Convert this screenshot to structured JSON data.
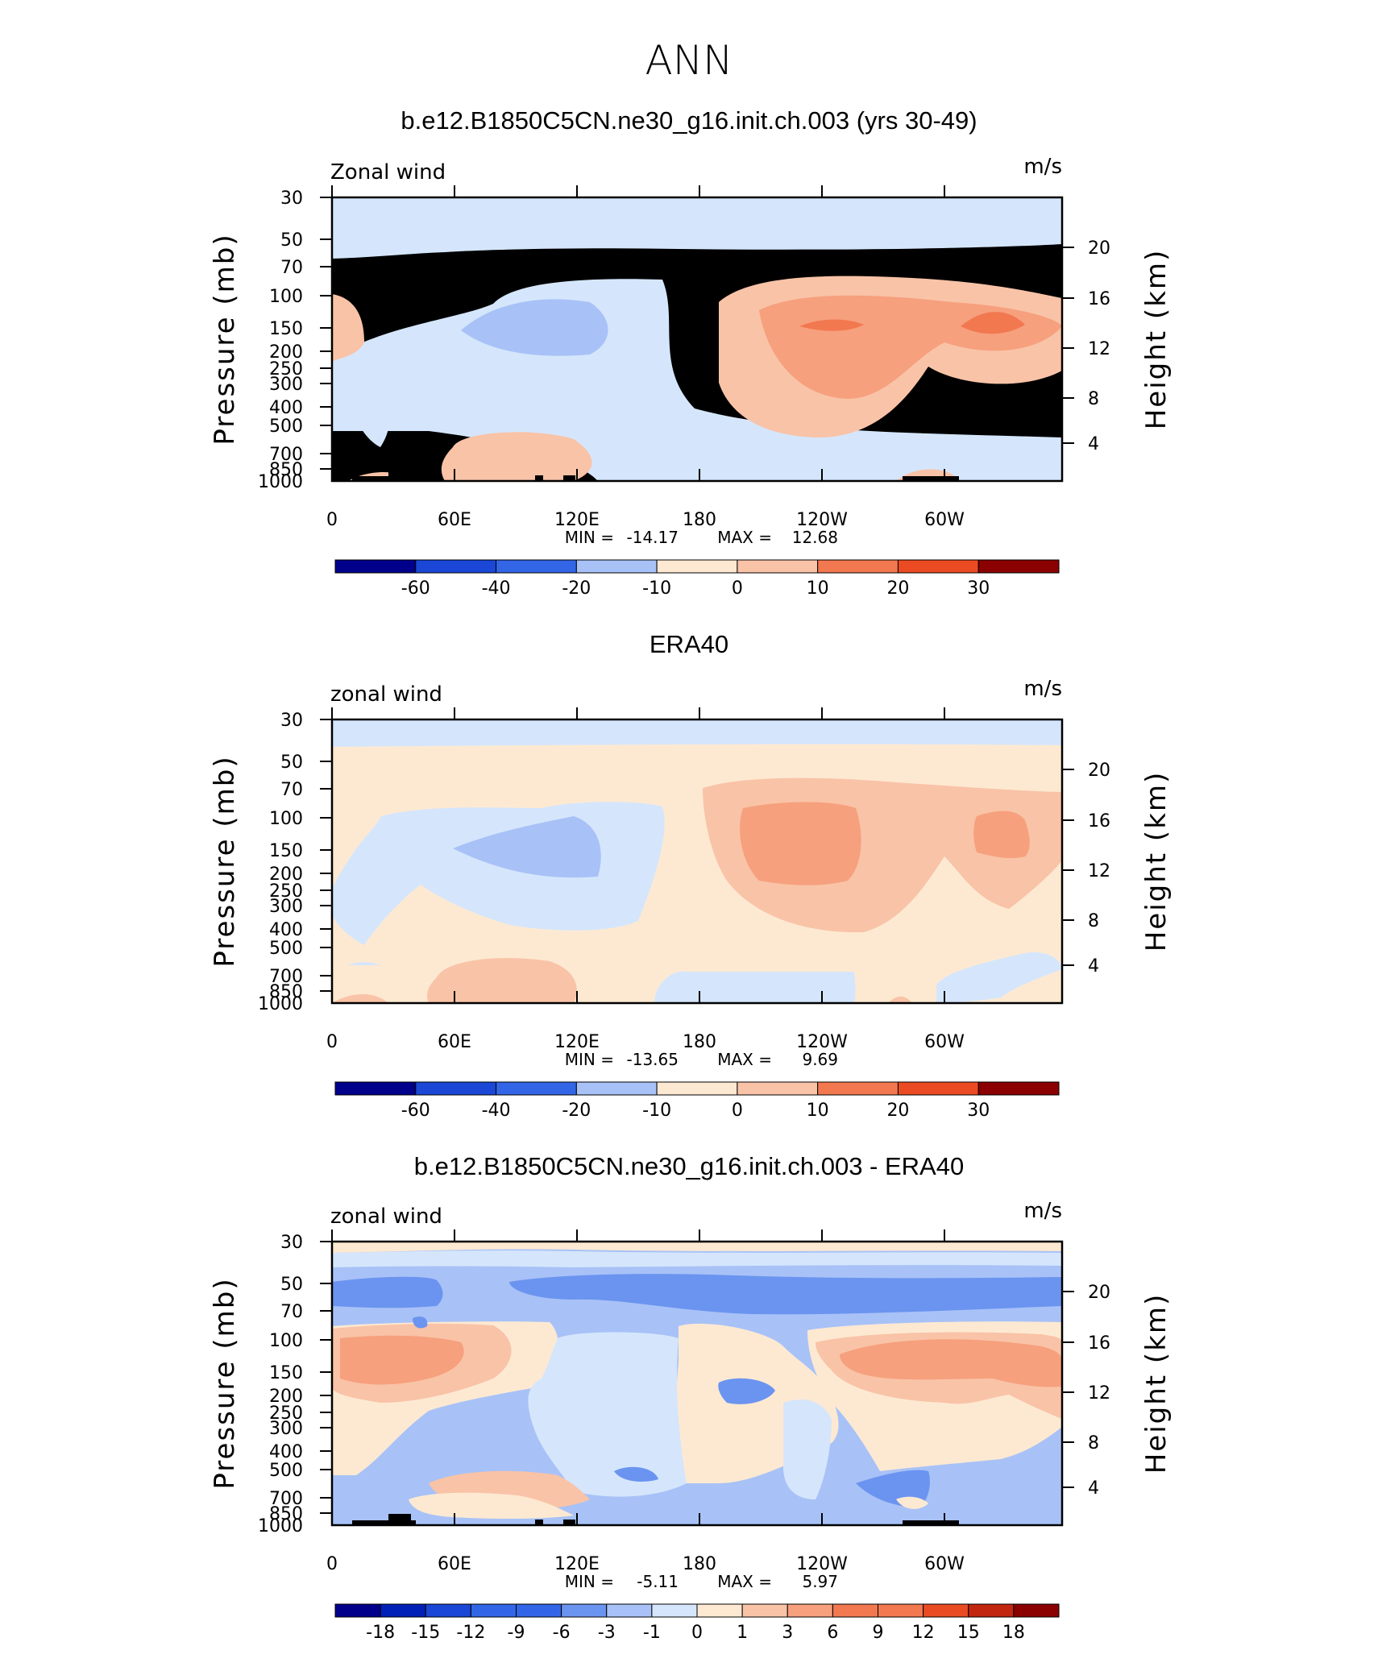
{
  "title": "ANN",
  "colors": {
    "c_n60": "#00008b",
    "c_n50": "#0020b8",
    "c_n40": "#1a47d6",
    "c_n30": "#3366e6",
    "c_n20": "#6b94f0",
    "c_n10": "#a8c2f7",
    "c_n5": "#d5e6fc",
    "c_0": "#fde9d2",
    "c_5": "#f9c3a7",
    "c_10": "#f6a07d",
    "c_20": "#f27850",
    "c_25": "#eb4b22",
    "c_30": "#c2260f",
    "c_40": "#8b0000",
    "land": "#000000"
  },
  "chart_data": [
    {
      "type": "heatmap",
      "title": "b.e12.B1850C5CN.ne30_g16.init.ch.003 (yrs 30-49)",
      "left_label": "Zonal wind",
      "right_label": "m/s",
      "ylabel": "Pressure (mb)",
      "ylabel_right": "Height (km)",
      "x_ticks": [
        "0",
        "60E",
        "120E",
        "180",
        "120W",
        "60W"
      ],
      "y_ticks": [
        "30",
        "50",
        "70",
        "100",
        "150",
        "200",
        "250",
        "300",
        "400",
        "500",
        "700",
        "850",
        "1000"
      ],
      "y_ticks_right": [
        "20",
        "16",
        "12",
        "8",
        "4"
      ],
      "min_label": "MIN =",
      "min": "-14.17",
      "max_label": "MAX =",
      "max": "12.68",
      "colorbar_labels": [
        "-60",
        "-40",
        "-20",
        "-10",
        "0",
        "10",
        "20",
        "30"
      ]
    },
    {
      "type": "heatmap",
      "title": "ERA40",
      "left_label": "zonal wind",
      "right_label": "m/s",
      "ylabel": "Pressure (mb)",
      "ylabel_right": "Height (km)",
      "x_ticks": [
        "0",
        "60E",
        "120E",
        "180",
        "120W",
        "60W"
      ],
      "y_ticks": [
        "30",
        "50",
        "70",
        "100",
        "150",
        "200",
        "250",
        "300",
        "400",
        "500",
        "700",
        "850",
        "1000"
      ],
      "y_ticks_right": [
        "20",
        "16",
        "12",
        "8",
        "4"
      ],
      "min_label": "MIN =",
      "min": "-13.65",
      "max_label": "MAX =",
      "max": "9.69",
      "colorbar_labels": [
        "-60",
        "-40",
        "-20",
        "-10",
        "0",
        "10",
        "20",
        "30"
      ]
    },
    {
      "type": "heatmap",
      "title": "b.e12.B1850C5CN.ne30_g16.init.ch.003 - ERA40",
      "left_label": "zonal wind",
      "right_label": "m/s",
      "ylabel": "Pressure (mb)",
      "ylabel_right": "Height (km)",
      "x_ticks": [
        "0",
        "60E",
        "120E",
        "180",
        "120W",
        "60W"
      ],
      "y_ticks": [
        "30",
        "50",
        "70",
        "100",
        "150",
        "200",
        "250",
        "300",
        "400",
        "500",
        "700",
        "850",
        "1000"
      ],
      "y_ticks_right": [
        "20",
        "16",
        "12",
        "8",
        "4"
      ],
      "min_label": "MIN =",
      "min": "-5.11",
      "max_label": "MAX =",
      "max": "5.97",
      "colorbar_labels": [
        "-18",
        "-15",
        "-12",
        "-9",
        "-6",
        "-3",
        "-1",
        "0",
        "1",
        "3",
        "6",
        "9",
        "12",
        "15",
        "18"
      ]
    }
  ]
}
